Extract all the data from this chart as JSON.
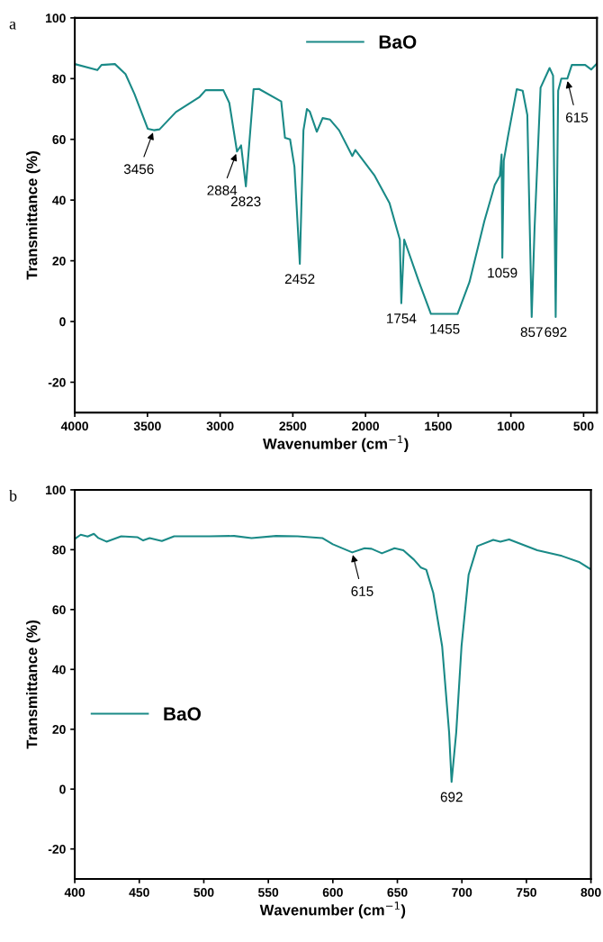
{
  "chart_data": [
    {
      "type": "line",
      "xlabel": "Wavenumber (cm$^{−1}$)",
      "ylabel": "Transmittance (%)",
      "xlim": [
        4000,
        408
      ],
      "xticks": [
        4000,
        3500,
        3000,
        2500,
        2000,
        1500,
        1000,
        500
      ],
      "ylim": [
        -30,
        100
      ],
      "yticks": [
        -20,
        0,
        20,
        40,
        60,
        80,
        100
      ],
      "legend": "top",
      "grid": false,
      "series": [
        {
          "name": "BaO",
          "color": "#1a8a87",
          "x": [
            4000,
            3845,
            3816,
            3724,
            3651,
            3590,
            3498,
            3456,
            3417,
            3304,
            3141,
            3100,
            2978,
            2937,
            2884,
            2856,
            2823,
            2770,
            2733,
            2580,
            2554,
            2519,
            2489,
            2452,
            2427,
            2403,
            2384,
            2335,
            2295,
            2244,
            2182,
            2091,
            2070,
            1937,
            1835,
            1764,
            1754,
            1734,
            1632,
            1550,
            1455,
            1367,
            1285,
            1183,
            1111,
            1076,
            1064,
            1059,
            1049,
            1020,
            960,
            919,
            887,
            857,
            837,
            796,
            734,
            710,
            692,
            675,
            653,
            615,
            612,
            581,
            489,
            448,
            408
          ],
          "values": [
            84.8,
            82.8,
            84.5,
            84.8,
            81.5,
            75,
            63.5,
            63,
            63.3,
            69,
            74,
            76.2,
            76.2,
            72,
            56,
            58,
            44.5,
            76.5,
            76.6,
            72.5,
            60.5,
            60,
            51,
            19,
            63,
            70,
            69.2,
            62.5,
            67,
            66.5,
            63,
            54.5,
            56.5,
            48,
            39,
            27,
            6,
            27,
            13,
            2.5,
            2.5,
            2.5,
            13,
            33,
            45,
            48,
            55,
            21,
            53,
            61,
            76.5,
            76,
            68,
            1.5,
            31,
            77,
            83.5,
            81,
            1.5,
            76,
            80,
            80,
            80,
            84.5,
            84.5,
            83,
            85
          ]
        }
      ],
      "annotations": [
        "a",
        {
          "text": "3456",
          "x": 3456,
          "y": 63
        },
        {
          "text": "2884",
          "x": 2884,
          "y": 56
        },
        {
          "text": "2823",
          "x": 2823,
          "y": 44.5
        },
        {
          "text": "2452",
          "x": 2452,
          "y": 19
        },
        {
          "text": "1754",
          "x": 1754,
          "y": 6
        },
        {
          "text": "1455",
          "x": 1455,
          "y": 2.5
        },
        {
          "text": "1059",
          "x": 1059,
          "y": 21
        },
        {
          "text": "857",
          "x": 857,
          "y": 1.5
        },
        {
          "text": "692",
          "x": 692,
          "y": 1.5
        },
        {
          "text": "615",
          "x": 615,
          "y": 80
        }
      ]
    },
    {
      "type": "line",
      "xlabel": "Wavenumber (cm$^{−1}$)",
      "ylabel": "Transmittance (%)",
      "xlim": [
        400,
        800
      ],
      "xticks": [
        400,
        450,
        500,
        550,
        600,
        650,
        700,
        750,
        800
      ],
      "ylim": [
        -30,
        100
      ],
      "yticks": [
        -20,
        0,
        20,
        40,
        60,
        80,
        100
      ],
      "legend": "left",
      "grid": false,
      "series": [
        {
          "name": "BaO",
          "color": "#1a8a87",
          "x": [
            400,
            404.6,
            410,
            414.8,
            418.3,
            424.6,
            436,
            448.4,
            453,
            458,
            467.5,
            477,
            504.4,
            523.5,
            537,
            556,
            572.7,
            591.8,
            600,
            615,
            624.6,
            630,
            638,
            647.8,
            654.6,
            662.8,
            668.3,
            672.4,
            677.8,
            684.7,
            690.1,
            692,
            695.6,
            699.7,
            705.2,
            712,
            724.3,
            729.8,
            736.6,
            758.4,
            777.5,
            791.2,
            800
          ],
          "values": [
            83.6,
            85,
            84.4,
            85.3,
            83.9,
            82.7,
            84.5,
            84.2,
            83.1,
            83.9,
            82.9,
            84.5,
            84.5,
            84.6,
            83.9,
            84.6,
            84.5,
            83.9,
            81.8,
            79.1,
            80.5,
            80.3,
            78.8,
            80.5,
            79.8,
            76.7,
            74,
            73.3,
            65.6,
            47.7,
            18.9,
            2.4,
            18.9,
            47.7,
            71.6,
            81.2,
            83.3,
            82.7,
            83.4,
            79.8,
            77.9,
            75.8,
            73.4
          ]
        }
      ],
      "annotations": [
        "b",
        {
          "text": "615",
          "x": 615,
          "y": 79.1
        },
        {
          "text": "692",
          "x": 692,
          "y": 2.4
        }
      ]
    }
  ]
}
